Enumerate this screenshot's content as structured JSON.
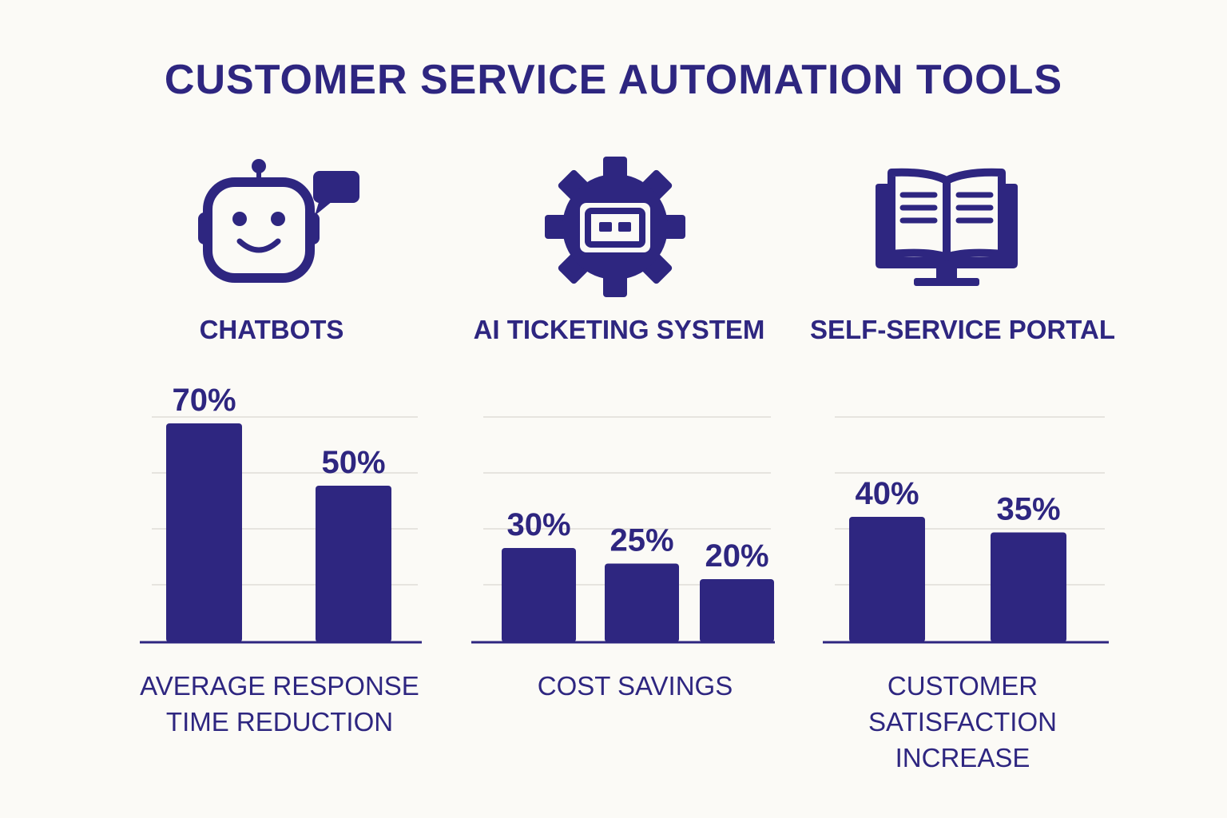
{
  "title": "CUSTOMER SERVICE AUTOMATION TOOLS",
  "tools": [
    {
      "label": "CHATBOTS",
      "icon": "robot-chat-icon"
    },
    {
      "label": "AI TICKETING SYSTEM",
      "icon": "gear-ticket-icon"
    },
    {
      "label": "SELF-SERVICE PORTAL",
      "icon": "monitor-book-icon"
    }
  ],
  "colors": {
    "primary": "#2e2680",
    "background": "#fbfaf6",
    "grid": "#e6e4df"
  },
  "chart_data": [
    {
      "type": "bar",
      "caption_lines": [
        "AVERAGE RESPONSE",
        "TIME REDUCTION"
      ],
      "values": [
        70,
        50
      ],
      "value_labels": [
        "70%",
        "50%"
      ],
      "unit": "%",
      "ylim": [
        0,
        70
      ],
      "grid": true
    },
    {
      "type": "bar",
      "caption_lines": [
        "COST SAVINGS"
      ],
      "values": [
        30,
        25,
        20
      ],
      "value_labels": [
        "30%",
        "25%",
        "20%"
      ],
      "unit": "%",
      "ylim": [
        0,
        70
      ],
      "grid": true
    },
    {
      "type": "bar",
      "caption_lines": [
        "CUSTOMER",
        "SATISFACTION",
        "INCREASE"
      ],
      "values": [
        40,
        35
      ],
      "value_labels": [
        "40%",
        "35%"
      ],
      "unit": "%",
      "ylim": [
        0,
        70
      ],
      "grid": true
    }
  ]
}
